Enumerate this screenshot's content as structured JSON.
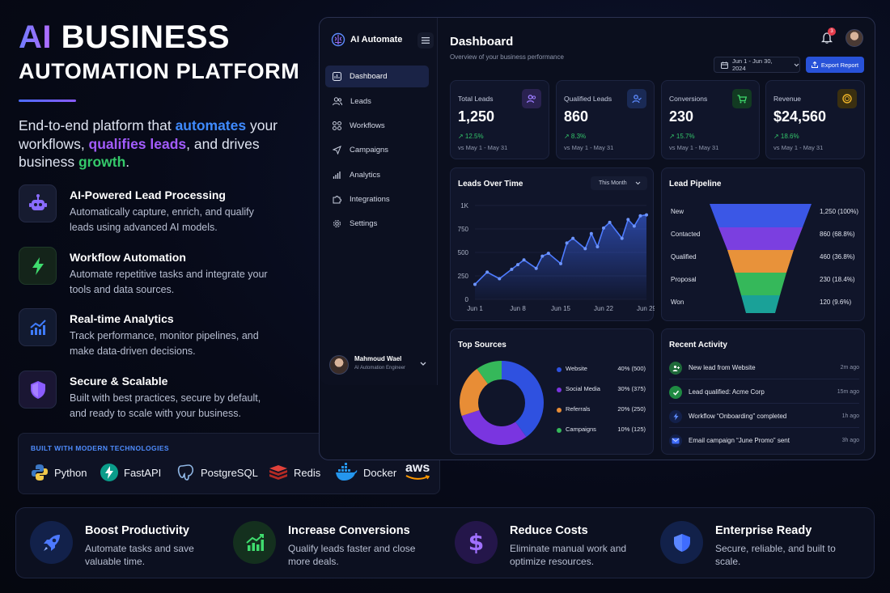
{
  "hero": {
    "title_ai": "AI",
    "title_rest": " BUSINESS",
    "title_line2": "AUTOMATION PLATFORM",
    "subtitle": {
      "part1": "End-to-end platform that ",
      "hl1": "automates",
      "part2": " your workflows, ",
      "hl2": "qualifies leads",
      "part3": ", and drives business ",
      "hl3": "growth",
      "part4": "."
    }
  },
  "features": [
    {
      "icon": "robot-icon",
      "title": "AI-Powered Lead Processing",
      "desc": "Automatically capture, enrich, and qualify leads using advanced AI models."
    },
    {
      "icon": "lightning-icon",
      "title": "Workflow Automation",
      "desc": "Automate repetitive tasks and integrate your tools and data sources."
    },
    {
      "icon": "analytics-icon",
      "title": "Real-time Analytics",
      "desc": "Track performance, monitor pipelines, and make data-driven decisions."
    },
    {
      "icon": "shield-icon",
      "title": "Secure & Scalable",
      "desc": "Built with best practices, secure by default, and ready to scale with your business."
    }
  ],
  "tech": {
    "heading": "BUILT WITH MODERN TECHNOLOGIES",
    "items": [
      "Python",
      "FastAPI",
      "PostgreSQL",
      "Redis",
      "Docker",
      "aws"
    ]
  },
  "app": {
    "name": "AI Automate",
    "nav": [
      "Dashboard",
      "Leads",
      "Workflows",
      "Campaigns",
      "Analytics",
      "Integrations",
      "Settings"
    ],
    "user_name": "Mahmoud Wael",
    "user_role": "AI Automation Engineer",
    "title": "Dashboard",
    "subtitle": "Overview of your business performance",
    "notifications": "3",
    "date_range": "Jun 1 - Jun 30, 2024",
    "export_label": "Export Report"
  },
  "kpis": [
    {
      "label": "Total Leads",
      "value": "1,250",
      "change": "↗ 12.5%",
      "vs": "vs May 1 - May 31",
      "color": "#7a5cff"
    },
    {
      "label": "Qualified Leads",
      "value": "860",
      "change": "↗ 8.3%",
      "vs": "vs May 1 - May 31",
      "color": "#3f7bff"
    },
    {
      "label": "Conversions",
      "value": "230",
      "change": "↗ 15.7%",
      "vs": "vs May 1 - May 31",
      "color": "#2fbf63"
    },
    {
      "label": "Revenue",
      "value": "$24,560",
      "change": "↗ 18.6%",
      "vs": "vs May 1 - May 31",
      "color": "#e6a623"
    }
  ],
  "leads_chart": {
    "title": "Leads Over Time",
    "period": "This Month",
    "yticks": [
      "1K",
      "750",
      "500",
      "250",
      "0"
    ],
    "xticks": [
      "Jun 1",
      "Jun 8",
      "Jun 15",
      "Jun 22",
      "Jun 29"
    ]
  },
  "chart_data": {
    "type": "line",
    "x": [
      1,
      3,
      5,
      7,
      8,
      9,
      11,
      12,
      13,
      15,
      16,
      17,
      19,
      20,
      21,
      22,
      23,
      25,
      26,
      27,
      28,
      29
    ],
    "y": [
      160,
      290,
      220,
      320,
      370,
      420,
      330,
      460,
      490,
      380,
      600,
      650,
      540,
      700,
      560,
      760,
      820,
      650,
      850,
      780,
      890,
      900
    ],
    "ylim": [
      0,
      1000
    ],
    "grid": true
  },
  "pipeline": {
    "title": "Lead Pipeline",
    "stages": [
      {
        "name": "New",
        "value": "1,250 (100%)",
        "color": "#3b57e6"
      },
      {
        "name": "Contacted",
        "value": "860 (68.8%)",
        "color": "#7b3fe0"
      },
      {
        "name": "Qualified",
        "value": "460 (36.8%)",
        "color": "#e8923a"
      },
      {
        "name": "Proposal",
        "value": "230 (18.4%)",
        "color": "#35b85a"
      },
      {
        "name": "Won",
        "value": "120 (9.6%)",
        "color": "#1aa198"
      }
    ]
  },
  "sources": {
    "title": "Top Sources",
    "items": [
      {
        "name": "Website",
        "value": "40% (500)",
        "pct": 40,
        "color": "#2f51e0"
      },
      {
        "name": "Social Media",
        "value": "30% (375)",
        "pct": 30,
        "color": "#7a35e0"
      },
      {
        "name": "Referrals",
        "value": "20% (250)",
        "pct": 20,
        "color": "#e88d36"
      },
      {
        "name": "Campaigns",
        "value": "10% (125)",
        "pct": 10,
        "color": "#35b85a"
      }
    ]
  },
  "activity": {
    "title": "Recent Activity",
    "items": [
      {
        "text": "New lead from Website",
        "time": "2m ago",
        "color": "#2e9d4f"
      },
      {
        "text": "Lead qualified: Acme Corp",
        "time": "15m ago",
        "color": "#2e9d4f"
      },
      {
        "text": "Workflow “Onboarding” completed",
        "time": "1h ago",
        "color": "#3f6cff"
      },
      {
        "text": "Email campaign “June Promo” sent",
        "time": "3h ago",
        "color": "#3f6cff"
      }
    ]
  },
  "benefits": [
    {
      "title": "Boost Productivity",
      "desc": "Automate tasks and save valuable time."
    },
    {
      "title": "Increase Conversions",
      "desc": "Qualify leads faster and close more deals."
    },
    {
      "title": "Reduce Costs",
      "desc": "Eliminate manual work and optimize resources."
    },
    {
      "title": "Enterprise Ready",
      "desc": "Secure, reliable, and built to scale."
    }
  ]
}
